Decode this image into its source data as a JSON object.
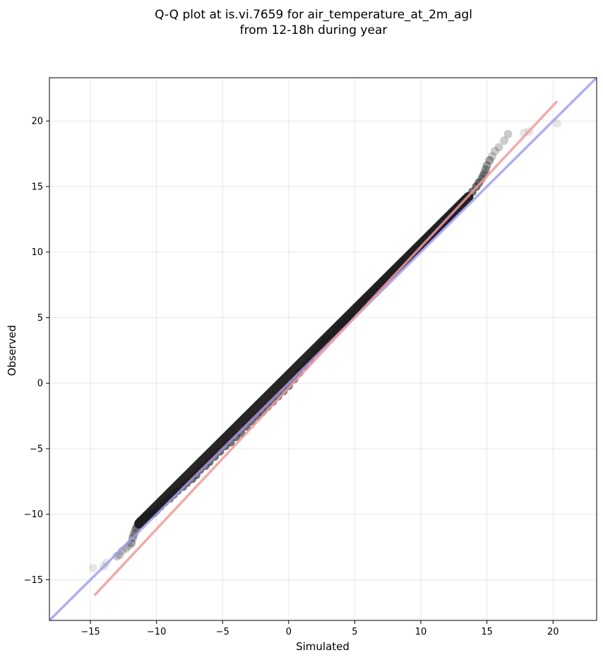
{
  "chart_data": {
    "type": "scatter",
    "title_lines": [
      "Q-Q plot at is.vi.7659 for air_temperature_at_2m_agl",
      "from 12-18h during year"
    ],
    "xlabel": "Simulated",
    "ylabel": "Observed",
    "xlim": [
      -18.1,
      23.3
    ],
    "ylim": [
      -18.1,
      23.3
    ],
    "xticks": [
      -15,
      -10,
      -5,
      0,
      5,
      10,
      15,
      20
    ],
    "yticks": [
      -15,
      -10,
      -5,
      0,
      5,
      10,
      15,
      20
    ],
    "xtick_labels": [
      "−15",
      "−10",
      "−5",
      "0",
      "5",
      "10",
      "15",
      "20"
    ],
    "ytick_labels": [
      "−15",
      "−10",
      "−5",
      "0",
      "5",
      "10",
      "15",
      "20"
    ],
    "grid": true,
    "colors": {
      "points": "#333333",
      "identity_line": "#9b9bf0",
      "fit_line": "#f09b9b",
      "density_dark": "#1a1a1a",
      "density_red": "#7a1010",
      "density_blue": "#151560"
    },
    "identity_line": {
      "x": [
        -18.1,
        23.3
      ],
      "y": [
        -18.1,
        23.3
      ]
    },
    "fit_line": {
      "x": [
        -14.7,
        20.3
      ],
      "y": [
        -16.2,
        21.5
      ]
    },
    "series": [
      {
        "x": [
          -14.8,
          -14.0,
          -13.8,
          -13.0,
          -12.8,
          -12.6,
          -12.3,
          -12.1,
          -11.9,
          -11.8,
          -11.7,
          -11.6,
          -11.5,
          -11.4,
          -11.3,
          -11.2,
          -11.0,
          -10.8,
          -10.6,
          -10.4,
          -10.2,
          -10.0,
          -9.7,
          -9.4,
          -9.0,
          -8.7,
          -8.4,
          -8.0,
          -7.7,
          -7.3,
          -7.0,
          -6.7,
          -6.3,
          -6.0,
          -5.6,
          -5.2,
          -4.8,
          -4.4,
          -4.0,
          -3.6,
          -3.2,
          -2.8,
          -2.4,
          -2.0,
          -1.6,
          -1.2,
          -0.8,
          -0.4,
          0.0,
          0.4,
          0.8,
          1.2,
          1.6,
          2.0,
          2.4,
          2.8,
          3.2,
          3.6,
          4.0,
          4.4,
          4.8,
          5.2,
          5.6,
          6.0,
          6.4,
          6.8,
          7.2,
          7.6,
          8.0,
          8.4,
          8.8,
          9.2,
          9.6,
          10.0,
          10.4,
          10.8,
          11.2,
          11.6,
          12.0,
          12.4,
          12.8,
          13.2,
          13.6,
          13.9,
          14.2,
          14.4,
          14.6,
          14.7,
          14.8,
          14.9,
          15.0,
          15.2,
          15.4,
          15.6,
          15.9,
          16.3,
          16.6,
          17.8,
          18.2,
          20.3
        ],
        "y": [
          -14.1,
          -14.0,
          -13.7,
          -13.2,
          -13.1,
          -12.8,
          -12.6,
          -12.4,
          -12.2,
          -11.8,
          -11.5,
          -11.2,
          -11.0,
          -10.8,
          -10.7,
          -10.5,
          -10.4,
          -10.2,
          -10.1,
          -10.0,
          -9.9,
          -9.7,
          -9.4,
          -9.1,
          -8.8,
          -8.5,
          -8.2,
          -7.9,
          -7.6,
          -7.3,
          -7.0,
          -6.6,
          -6.3,
          -6.0,
          -5.6,
          -5.2,
          -4.8,
          -4.5,
          -4.1,
          -3.8,
          -3.3,
          -2.9,
          -2.5,
          -2.2,
          -1.8,
          -1.4,
          -1.0,
          -0.6,
          -0.2,
          0.3,
          0.8,
          1.3,
          1.8,
          2.4,
          2.9,
          3.3,
          3.7,
          4.1,
          4.5,
          4.9,
          5.3,
          5.8,
          6.2,
          6.6,
          7.0,
          7.4,
          7.8,
          8.2,
          8.6,
          9.0,
          9.4,
          9.8,
          10.2,
          10.6,
          11.0,
          11.4,
          11.8,
          12.2,
          12.6,
          13.0,
          13.4,
          13.8,
          14.2,
          14.6,
          15.0,
          15.3,
          15.6,
          15.8,
          16.0,
          16.3,
          16.6,
          17.0,
          17.3,
          17.7,
          18.0,
          18.5,
          19.0,
          19.1,
          19.2,
          19.8
        ]
      }
    ]
  }
}
